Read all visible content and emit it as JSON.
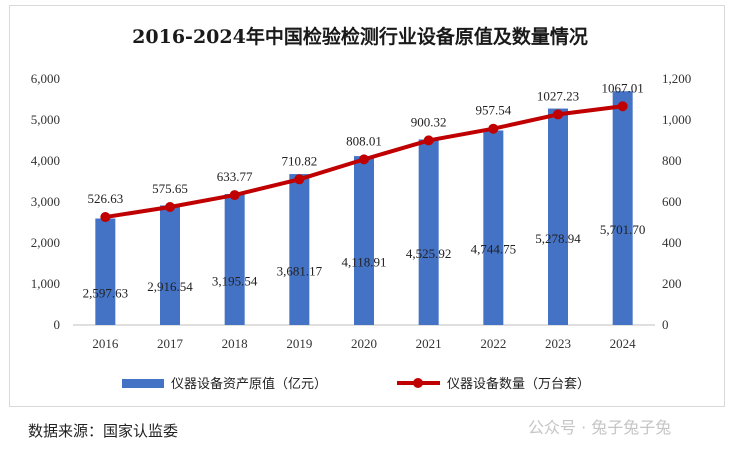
{
  "chart_data": {
    "type": "bar",
    "title": "2016-2024年中国检验检测行业设备原值及数量情况",
    "categories": [
      "2016",
      "2017",
      "2018",
      "2019",
      "2020",
      "2021",
      "2022",
      "2023",
      "2024"
    ],
    "series": [
      {
        "name": "仪器设备资产原值（亿元）",
        "type": "bar",
        "axis": "left",
        "color": "#4472C4",
        "values": [
          2597.63,
          2916.54,
          3195.54,
          3681.17,
          4118.91,
          4525.92,
          4744.75,
          5278.94,
          5701.7
        ],
        "labels": [
          "2,597.63",
          "2,916.54",
          "3,195.54",
          "3,681.17",
          "4,118.91",
          "4,525.92",
          "4,744.75",
          "5,278.94",
          "5,701.70"
        ]
      },
      {
        "name": "仪器设备数量（万台套）",
        "type": "line",
        "axis": "right",
        "color": "#C00000",
        "values": [
          526.63,
          575.65,
          633.77,
          710.82,
          808.01,
          900.32,
          957.54,
          1027.23,
          1067.01
        ],
        "labels": [
          "526.63",
          "575.65",
          "633.77",
          "710.82",
          "808.01",
          "900.32",
          "957.54",
          "1027.23",
          "1067.01"
        ]
      }
    ],
    "y_left": {
      "range": [
        0,
        6000
      ],
      "ticks": [
        "0",
        "1,000",
        "2,000",
        "3,000",
        "4,000",
        "5,000",
        "6,000"
      ]
    },
    "y_right": {
      "range": [
        0,
        1200
      ],
      "ticks": [
        "0",
        "200",
        "400",
        "600",
        "800",
        "1,000",
        "1,200"
      ]
    },
    "grid": false,
    "legend_position": "bottom"
  },
  "source_note": "数据来源：国家认监委",
  "watermark": "公众号 · 兔子兔子兔"
}
